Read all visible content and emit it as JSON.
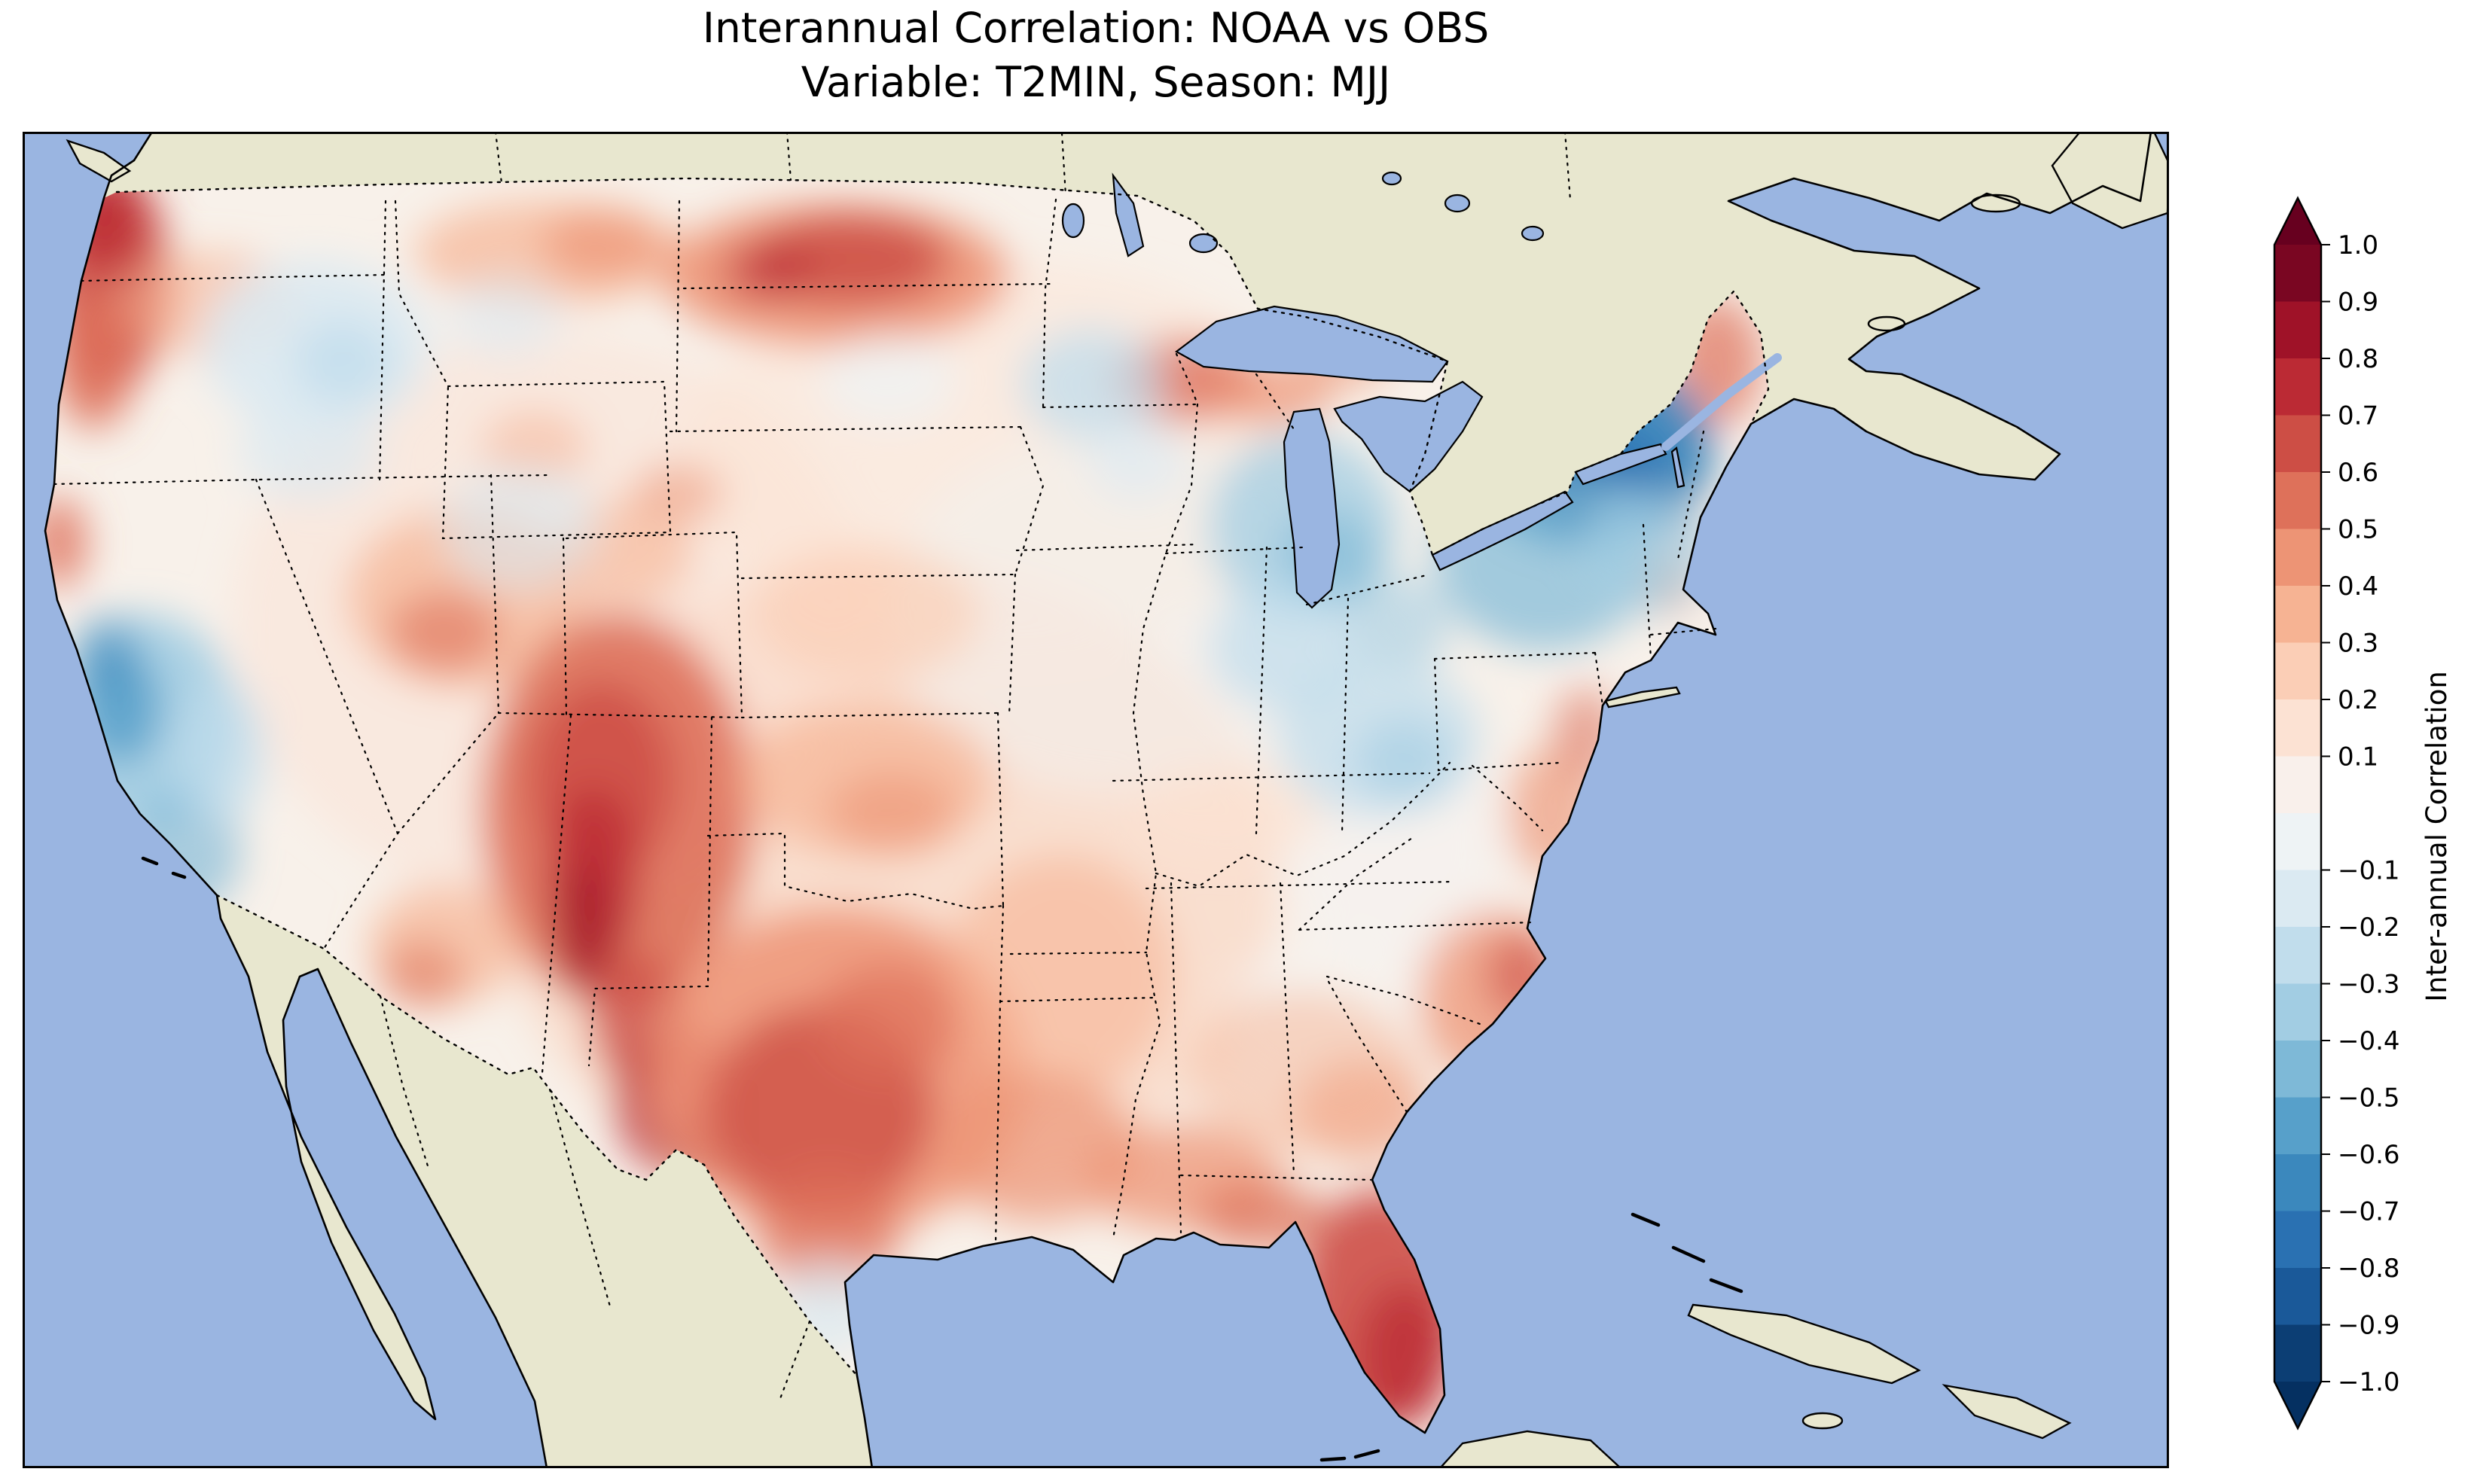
{
  "title": {
    "line1": "Interannual Correlation: NOAA vs OBS",
    "line2": "Variable: T2MIN, Season: MJJ"
  },
  "colorbar": {
    "label": "Inter-annual Correlation",
    "over_color": "#67001f",
    "under_color": "#053061",
    "band_colors": [
      "#7a0622",
      "#9f1228",
      "#bb2a34",
      "#cd4e45",
      "#de715a",
      "#ed9475",
      "#f6b393",
      "#fbceb6",
      "#fce2d3",
      "#f9f0eb",
      "#eef3f5",
      "#dbeaf2",
      "#c1ddec",
      "#a2cde3",
      "#7eb9d7",
      "#57a0ca",
      "#3b88bd",
      "#2a71b2",
      "#1a5999",
      "#0c3e74"
    ],
    "ticks": [
      "1.0",
      "0.9",
      "0.8",
      "0.7",
      "0.6",
      "0.5",
      "0.4",
      "0.3",
      "0.2",
      "0.1",
      "−0.1",
      "−0.2",
      "−0.3",
      "−0.4",
      "−0.5",
      "−0.6",
      "−0.7",
      "−0.8",
      "−0.9",
      "−1.0"
    ]
  },
  "map": {
    "ocean_color": "#9ab5e1",
    "land_color": "#e8e7cf",
    "us_base_color": "#f8f1ea",
    "border_color": "#000000",
    "blobs": [
      [
        1150,
        1000,
        520,
        430,
        "#fbceb6",
        0.5
      ],
      [
        700,
        650,
        420,
        380,
        "#fce2d3",
        0.5
      ],
      [
        1300,
        430,
        420,
        260,
        "#fce2d3",
        0.45
      ],
      [
        1450,
        640,
        300,
        240,
        "#f4f0ed",
        0.6
      ],
      [
        1820,
        950,
        140,
        180,
        "#f5f2ef",
        0.75
      ],
      [
        1720,
        1180,
        120,
        100,
        "#f6f3f0",
        0.7
      ],
      [
        115,
        195,
        80,
        150,
        "#cd4e45",
        0.9
      ],
      [
        110,
        115,
        50,
        70,
        "#bb2a34",
        0.85
      ],
      [
        95,
        300,
        55,
        95,
        "#de715a",
        0.85
      ],
      [
        250,
        230,
        120,
        70,
        "#f6b393",
        0.6
      ],
      [
        48,
        545,
        38,
        60,
        "#de715a",
        0.8
      ],
      [
        700,
        160,
        180,
        70,
        "#f6b393",
        0.7
      ],
      [
        770,
        150,
        80,
        45,
        "#ed9475",
        0.7
      ],
      [
        1080,
        190,
        230,
        95,
        "#ed9475",
        0.9
      ],
      [
        1100,
        170,
        130,
        60,
        "#cd4e45",
        0.85
      ],
      [
        990,
        185,
        60,
        40,
        "#bb2a34",
        0.6
      ],
      [
        1545,
        330,
        100,
        55,
        "#de715a",
        0.8
      ],
      [
        1660,
        350,
        80,
        40,
        "#ed9475",
        0.7
      ],
      [
        1750,
        300,
        70,
        40,
        "#ed9475",
        0.6
      ],
      [
        590,
        620,
        160,
        120,
        "#f6b393",
        0.7
      ],
      [
        560,
        665,
        75,
        55,
        "#de715a",
        0.6
      ],
      [
        680,
        420,
        70,
        50,
        "#f6b393",
        0.55
      ],
      [
        800,
        560,
        90,
        70,
        "#f6b393",
        0.6
      ],
      [
        870,
        480,
        60,
        40,
        "#ed9475",
        0.55
      ],
      [
        790,
        900,
        180,
        260,
        "#de715a",
        0.9
      ],
      [
        770,
        860,
        95,
        130,
        "#cd4e45",
        0.85
      ],
      [
        758,
        990,
        60,
        120,
        "#bb2a34",
        0.8
      ],
      [
        745,
        1060,
        38,
        90,
        "#9f1228",
        0.65
      ],
      [
        820,
        1180,
        65,
        85,
        "#cd4e45",
        0.8
      ],
      [
        870,
        1290,
        85,
        95,
        "#bb2a34",
        0.75
      ],
      [
        905,
        1350,
        50,
        50,
        "#9f1228",
        0.6
      ],
      [
        560,
        1080,
        100,
        80,
        "#f6b393",
        0.7
      ],
      [
        530,
        1120,
        55,
        45,
        "#de715a",
        0.55
      ],
      [
        1080,
        1250,
        250,
        220,
        "#ed9475",
        0.85
      ],
      [
        1060,
        1300,
        150,
        140,
        "#cd4e45",
        0.8
      ],
      [
        1150,
        1180,
        95,
        75,
        "#de715a",
        0.7
      ],
      [
        1070,
        1460,
        95,
        85,
        "#de715a",
        0.7
      ],
      [
        1120,
        860,
        170,
        100,
        "#f6b393",
        0.7
      ],
      [
        1155,
        905,
        85,
        55,
        "#ed9475",
        0.6
      ],
      [
        1120,
        640,
        150,
        90,
        "#fbceb6",
        0.7
      ],
      [
        1380,
        1120,
        150,
        160,
        "#f6b393",
        0.6
      ],
      [
        1350,
        1350,
        130,
        100,
        "#ed9475",
        0.7
      ],
      [
        1540,
        1390,
        130,
        70,
        "#ed9475",
        0.75
      ],
      [
        1780,
        1300,
        90,
        70,
        "#ed9475",
        0.6
      ],
      [
        1700,
        1250,
        150,
        110,
        "#f6b393",
        0.5
      ],
      [
        1800,
        1565,
        110,
        160,
        "#cd4e45",
        0.9
      ],
      [
        1835,
        1625,
        60,
        95,
        "#bb2a34",
        0.8
      ],
      [
        1645,
        1440,
        85,
        45,
        "#de715a",
        0.75
      ],
      [
        1955,
        1150,
        100,
        115,
        "#ed9475",
        0.75
      ],
      [
        1990,
        1120,
        48,
        58,
        "#cd4e45",
        0.6
      ],
      [
        2030,
        905,
        60,
        85,
        "#ed9475",
        0.65
      ],
      [
        2075,
        800,
        42,
        62,
        "#de715a",
        0.6
      ],
      [
        2250,
        305,
        60,
        85,
        "#de715a",
        0.7
      ],
      [
        2185,
        600,
        42,
        42,
        "#ed9475",
        0.55
      ],
      [
        2195,
        485,
        32,
        52,
        "#de715a",
        0.45
      ],
      [
        1600,
        905,
        130,
        60,
        "#fce2d3",
        0.7
      ],
      [
        390,
        285,
        150,
        115,
        "#dbeaf2",
        0.9
      ],
      [
        425,
        305,
        65,
        55,
        "#c1ddec",
        0.8
      ],
      [
        380,
        425,
        95,
        65,
        "#dbeaf2",
        0.7
      ],
      [
        660,
        525,
        105,
        85,
        "#dbeaf2",
        0.6
      ],
      [
        640,
        245,
        75,
        55,
        "#dbeaf2",
        0.55
      ],
      [
        160,
        785,
        125,
        145,
        "#a2cde3",
        0.9
      ],
      [
        130,
        765,
        55,
        75,
        "#57a0ca",
        0.85
      ],
      [
        112,
        695,
        42,
        52,
        "#3b88bd",
        0.55
      ],
      [
        215,
        955,
        75,
        85,
        "#7eb9d7",
        0.65
      ],
      [
        262,
        825,
        62,
        95,
        "#c1ddec",
        0.7
      ],
      [
        1420,
        335,
        95,
        75,
        "#c1ddec",
        0.75
      ],
      [
        1480,
        435,
        65,
        55,
        "#dbeaf2",
        0.65
      ],
      [
        1150,
        330,
        90,
        60,
        "#eef3f5",
        0.7
      ],
      [
        1700,
        525,
        125,
        125,
        "#a2cde3",
        0.75
      ],
      [
        1735,
        565,
        65,
        65,
        "#7eb9d7",
        0.65
      ],
      [
        1680,
        685,
        105,
        85,
        "#c1ddec",
        0.75
      ],
      [
        1830,
        655,
        65,
        65,
        "#a2cde3",
        0.6
      ],
      [
        1800,
        805,
        135,
        105,
        "#c1ddec",
        0.75
      ],
      [
        1835,
        835,
        65,
        55,
        "#a2cde3",
        0.6
      ],
      [
        2080,
        425,
        165,
        125,
        "#3b88bd",
        0.95
      ],
      [
        2090,
        455,
        95,
        65,
        "#2a71b2",
        0.9
      ],
      [
        2058,
        485,
        45,
        35,
        "#1a5999",
        0.8
      ],
      [
        2020,
        565,
        145,
        125,
        "#7eb9d7",
        0.7
      ],
      [
        2155,
        555,
        85,
        85,
        "#a2cde3",
        0.7
      ],
      [
        1070,
        1565,
        65,
        60,
        "#dbeaf2",
        0.75
      ]
    ]
  },
  "chart_data": {
    "type": "heatmap",
    "subtype": "filled-contour-correlation-map",
    "title": "Interannual Correlation: NOAA vs OBS",
    "subtitle": "Variable: T2MIN, Season: MJJ",
    "variable": "T2MIN",
    "season": "MJJ",
    "comparison": [
      "NOAA",
      "OBS"
    ],
    "region": "Contiguous United States",
    "colormap": "RdBu_r",
    "levels": {
      "min": -1.0,
      "max": 1.0,
      "step": 0.1
    },
    "colorbar_label": "Inter-annual Correlation",
    "colorbar_ticks": [
      1.0,
      0.9,
      0.8,
      0.7,
      0.6,
      0.5,
      0.4,
      0.3,
      0.2,
      0.1,
      -0.1,
      -0.2,
      -0.3,
      -0.4,
      -0.5,
      -0.6,
      -0.7,
      -0.8,
      -0.9,
      -1.0
    ],
    "legend_position": "right",
    "grid": false,
    "basemap": {
      "ocean": true,
      "land": true,
      "lakes": true,
      "state_borders": "dotted",
      "country_borders": "dotted",
      "coastlines": "solid"
    },
    "regions": [
      {
        "region": "Pacific Northwest coast (WA/OR)",
        "correlation": 0.7
      },
      {
        "region": "Inland Washington / Idaho",
        "correlation": -0.2
      },
      {
        "region": "Central California coast / Sierra",
        "correlation": -0.5
      },
      {
        "region": "Southern California coast",
        "correlation": -0.3
      },
      {
        "region": "Nevada / Utah",
        "correlation": 0.3
      },
      {
        "region": "New Mexico / southern Colorado",
        "correlation": 0.8
      },
      {
        "region": "West Texas (Big Bend)",
        "correlation": 0.7
      },
      {
        "region": "Central Texas",
        "correlation": 0.6
      },
      {
        "region": "Montana / North Dakota",
        "correlation": 0.5
      },
      {
        "region": "Minnesota",
        "correlation": -0.2
      },
      {
        "region": "Wisconsin / Lake Michigan area",
        "correlation": -0.3
      },
      {
        "region": "Ohio Valley",
        "correlation": -0.2
      },
      {
        "region": "Upstate New York / interior Northeast",
        "correlation": -0.7
      },
      {
        "region": "Coastal Maine",
        "correlation": 0.4
      },
      {
        "region": "Mid-Atlantic coast",
        "correlation": 0.4
      },
      {
        "region": "Carolinas coast",
        "correlation": 0.5
      },
      {
        "region": "Georgia / Alabama interior",
        "correlation": 0.1
      },
      {
        "region": "Florida peninsula",
        "correlation": 0.7
      },
      {
        "region": "Gulf Coast",
        "correlation": 0.4
      },
      {
        "region": "Kansas / Oklahoma",
        "correlation": 0.3
      },
      {
        "region": "Nebraska / Iowa plains",
        "correlation": 0.1
      }
    ]
  }
}
